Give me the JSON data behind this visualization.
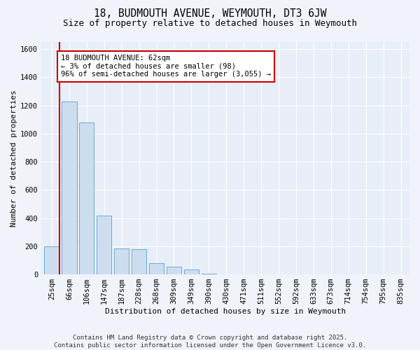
{
  "title_line1": "18, BUDMOUTH AVENUE, WEYMOUTH, DT3 6JW",
  "title_line2": "Size of property relative to detached houses in Weymouth",
  "xlabel": "Distribution of detached houses by size in Weymouth",
  "ylabel": "Number of detached properties",
  "categories": [
    "25sqm",
    "66sqm",
    "106sqm",
    "147sqm",
    "187sqm",
    "228sqm",
    "268sqm",
    "309sqm",
    "349sqm",
    "390sqm",
    "430sqm",
    "471sqm",
    "511sqm",
    "552sqm",
    "592sqm",
    "633sqm",
    "673sqm",
    "714sqm",
    "754sqm",
    "795sqm",
    "835sqm"
  ],
  "values": [
    200,
    1230,
    1080,
    420,
    185,
    180,
    80,
    55,
    35,
    5,
    0,
    0,
    0,
    0,
    0,
    0,
    0,
    0,
    0,
    0,
    0
  ],
  "bar_color": "#cdddf0",
  "bar_edge_color": "#6aaad4",
  "highlight_line_color": "#cc0000",
  "annotation_text": "18 BUDMOUTH AVENUE: 62sqm\n← 3% of detached houses are smaller (98)\n96% of semi-detached houses are larger (3,055) →",
  "annotation_box_facecolor": "#ffffff",
  "annotation_box_edgecolor": "#cc0000",
  "ylim": [
    0,
    1650
  ],
  "yticks": [
    0,
    200,
    400,
    600,
    800,
    1000,
    1200,
    1400,
    1600
  ],
  "fig_bg_color": "#f0f4fa",
  "plot_bg_color": "#e8eef7",
  "footer": "Contains HM Land Registry data © Crown copyright and database right 2025.\nContains public sector information licensed under the Open Government Licence v3.0.",
  "title_fontsize": 10.5,
  "subtitle_fontsize": 9,
  "axis_label_fontsize": 8,
  "tick_fontsize": 7.5,
  "footer_fontsize": 6.5,
  "annot_fontsize": 7.5
}
